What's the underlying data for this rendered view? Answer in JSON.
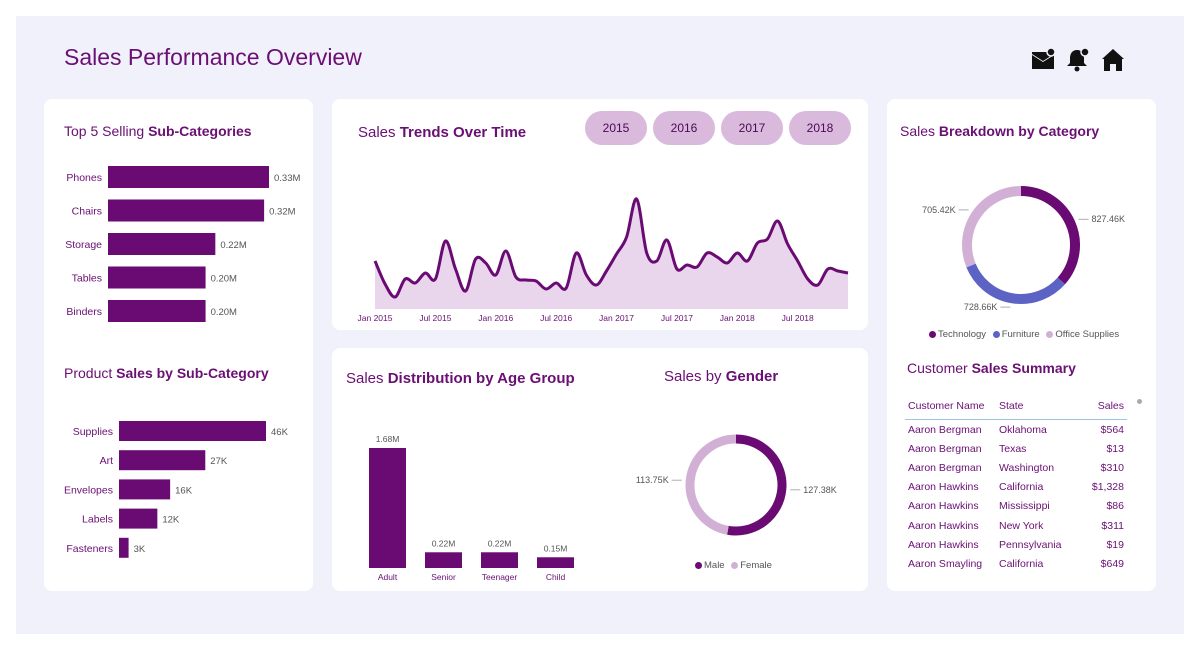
{
  "header": {
    "title": "Sales Performance Overview",
    "icons": [
      "mail-icon",
      "bell-icon",
      "home-icon"
    ]
  },
  "colors": {
    "dark_purple": "#6a0a73",
    "light_purple": "#d2b0d6",
    "area_fill": "#e9d5ec",
    "blue": "#5c63c4",
    "background": "#f1f1fb"
  },
  "top5": {
    "title_plain": "Top 5 Selling ",
    "title_bold": "Sub-Categories",
    "chart_data": {
      "type": "bar",
      "orientation": "horizontal",
      "categories": [
        "Phones",
        "Chairs",
        "Storage",
        "Tables",
        "Binders"
      ],
      "values": [
        0.33,
        0.32,
        0.22,
        0.2,
        0.2
      ],
      "labels": [
        "0.33M",
        "0.32M",
        "0.22M",
        "0.20M",
        "0.20M"
      ],
      "unit": "M"
    }
  },
  "product_sales": {
    "title_plain": "Product ",
    "title_bold": "Sales by Sub-Category",
    "chart_data": {
      "type": "bar",
      "orientation": "horizontal",
      "categories": [
        "Supplies",
        "Art",
        "Envelopes",
        "Labels",
        "Fasteners"
      ],
      "values": [
        46,
        27,
        16,
        12,
        3
      ],
      "labels": [
        "46K",
        "27K",
        "16K",
        "12K",
        "3K"
      ],
      "unit": "K"
    }
  },
  "trends": {
    "title_plain": "Sales ",
    "title_bold": "Trends Over Time",
    "years": [
      "2015",
      "2016",
      "2017",
      "2018"
    ],
    "chart_data": {
      "type": "area",
      "x_tick_labels": [
        "Jan 2015",
        "Jul 2015",
        "Jan 2016",
        "Jul 2016",
        "Jan 2017",
        "Jul 2017",
        "Jan 2018",
        "Jul 2018"
      ],
      "x": [
        "2015-01",
        "2015-02",
        "2015-03",
        "2015-04",
        "2015-05",
        "2015-06",
        "2015-07",
        "2015-08",
        "2015-09",
        "2015-10",
        "2015-11",
        "2015-12",
        "2016-01",
        "2016-02",
        "2016-03",
        "2016-04",
        "2016-05",
        "2016-06",
        "2016-07",
        "2016-08",
        "2016-09",
        "2016-10",
        "2016-11",
        "2016-12",
        "2017-01",
        "2017-02",
        "2017-03",
        "2017-04",
        "2017-05",
        "2017-06",
        "2017-07",
        "2017-08",
        "2017-09",
        "2017-10",
        "2017-11",
        "2017-12",
        "2018-01",
        "2018-02",
        "2018-03",
        "2018-04",
        "2018-05",
        "2018-06",
        "2018-07",
        "2018-08",
        "2018-09",
        "2018-10",
        "2018-11",
        "2018-12"
      ],
      "values": [
        48,
        25,
        12,
        30,
        26,
        36,
        30,
        68,
        40,
        18,
        50,
        46,
        34,
        58,
        32,
        29,
        28,
        20,
        26,
        21,
        56,
        34,
        24,
        38,
        55,
        72,
        110,
        56,
        48,
        69,
        40,
        44,
        42,
        56,
        52,
        46,
        56,
        48,
        66,
        70,
        88,
        65,
        48,
        30,
        24,
        40,
        38,
        36
      ],
      "ylim": [
        0,
        120
      ]
    }
  },
  "age": {
    "title_plain": "Sales ",
    "title_bold": "Distribution by Age Group",
    "chart_data": {
      "type": "bar",
      "categories": [
        "Adult",
        "Senior",
        "Teenager",
        "Child"
      ],
      "values": [
        1.68,
        0.22,
        0.22,
        0.15
      ],
      "labels": [
        "1.68M",
        "0.22M",
        "0.22M",
        "0.15M"
      ],
      "unit": "M"
    }
  },
  "gender": {
    "title_plain": "Sales by ",
    "title_bold": "Gender",
    "chart_data": {
      "type": "pie",
      "donut": true,
      "categories": [
        "Male",
        "Female"
      ],
      "values": [
        127.38,
        113.75
      ],
      "labels": [
        "127.38K",
        "113.75K"
      ],
      "colors": [
        "#6a0a73",
        "#d2b0d6"
      ]
    },
    "legend": [
      "Male",
      "Female"
    ]
  },
  "category": {
    "title_plain": "Sales ",
    "title_bold": "Breakdown by Category",
    "chart_data": {
      "type": "pie",
      "donut": true,
      "categories": [
        "Technology",
        "Furniture",
        "Office Supplies"
      ],
      "values": [
        827.46,
        728.66,
        705.42
      ],
      "labels": [
        "827.46K",
        "728.66K",
        "705.42K"
      ],
      "colors": [
        "#6a0a73",
        "#5c63c4",
        "#d2b0d6"
      ]
    },
    "legend": [
      "Technology",
      "Furniture",
      "Office Supplies"
    ]
  },
  "customers": {
    "title_plain": "Customer ",
    "title_bold": "Sales Summary",
    "columns": [
      "Customer Name",
      "State",
      "Sales"
    ],
    "rows": [
      [
        "Aaron Bergman",
        "Oklahoma",
        "$564"
      ],
      [
        "Aaron Bergman",
        "Texas",
        "$13"
      ],
      [
        "Aaron Bergman",
        "Washington",
        "$310"
      ],
      [
        "Aaron Hawkins",
        "California",
        "$1,328"
      ],
      [
        "Aaron Hawkins",
        "Mississippi",
        "$86"
      ],
      [
        "Aaron Hawkins",
        "New York",
        "$311"
      ],
      [
        "Aaron Hawkins",
        "Pennsylvania",
        "$19"
      ],
      [
        "Aaron Smayling",
        "California",
        "$649"
      ]
    ]
  }
}
